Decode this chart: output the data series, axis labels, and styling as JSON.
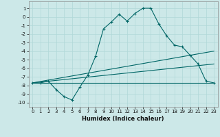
{
  "xlabel": "Humidex (Indice chaleur)",
  "bg_color": "#cce8e8",
  "grid_color": "#b0d8d8",
  "line_color": "#006666",
  "xlim": [
    -0.5,
    23.5
  ],
  "ylim": [
    -10.5,
    1.8
  ],
  "yticks": [
    1,
    0,
    -1,
    -2,
    -3,
    -4,
    -5,
    -6,
    -7,
    -8,
    -9,
    -10
  ],
  "xticks": [
    0,
    1,
    2,
    3,
    4,
    5,
    6,
    7,
    8,
    9,
    10,
    11,
    12,
    13,
    14,
    15,
    16,
    17,
    18,
    19,
    20,
    21,
    22,
    23
  ],
  "series1_x": [
    0,
    1,
    2,
    3,
    4,
    5,
    6,
    7,
    8,
    9,
    10,
    11,
    12,
    13,
    14,
    15,
    16,
    17,
    18,
    19,
    20,
    21,
    22,
    23
  ],
  "series1_y": [
    -7.7,
    -7.7,
    -7.5,
    -8.5,
    -9.3,
    -9.7,
    -8.2,
    -6.8,
    -4.6,
    -1.4,
    -0.6,
    0.3,
    -0.5,
    0.4,
    1.0,
    1.0,
    -0.8,
    -2.2,
    -3.3,
    -3.5,
    -4.5,
    -5.5,
    -7.5,
    -7.7
  ],
  "series2_x": [
    0,
    23
  ],
  "series2_y": [
    -7.7,
    -7.7
  ],
  "series3_x": [
    0,
    23
  ],
  "series3_y": [
    -7.7,
    -5.5
  ],
  "series4_x": [
    0,
    23
  ],
  "series4_y": [
    -7.7,
    -4.0
  ]
}
